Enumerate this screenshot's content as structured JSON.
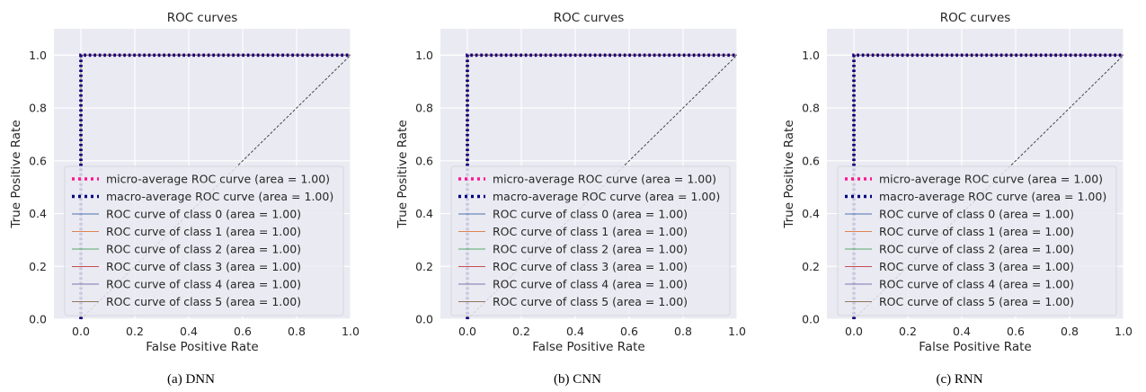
{
  "chart_data": [
    {
      "type": "line",
      "title": "ROC curves",
      "caption": "(a)  DNN",
      "xlabel": "False Positive Rate",
      "ylabel": "True Positive Rate",
      "xlim": [
        -0.1,
        1.0
      ],
      "ylim": [
        0.0,
        1.1
      ],
      "xticks": [
        "0.0",
        "0.2",
        "0.4",
        "0.6",
        "0.8",
        "1.0"
      ],
      "yticks": [
        "0.0",
        "0.2",
        "0.4",
        "0.6",
        "0.8",
        "1.0"
      ],
      "grid": true,
      "legend_position": "lower-right",
      "series": [
        {
          "name": "micro-average ROC curve (area = 1.00)",
          "color": "#ff1493",
          "style": "dotted",
          "x": [
            0.0,
            0.0,
            1.0
          ],
          "y": [
            0.0,
            1.0,
            1.0
          ]
        },
        {
          "name": "macro-average ROC curve (area = 1.00)",
          "color": "#000080",
          "style": "dotted",
          "x": [
            0.0,
            0.0,
            1.0
          ],
          "y": [
            0.0,
            1.0,
            1.0
          ]
        },
        {
          "name": "ROC curve of class 0 (area = 1.00)",
          "color": "#4c72b0",
          "style": "solid",
          "x": [
            0.0,
            0.0,
            1.0
          ],
          "y": [
            0.0,
            1.0,
            1.0
          ]
        },
        {
          "name": "ROC curve of class 1 (area = 1.00)",
          "color": "#dd8452",
          "style": "solid",
          "x": [
            0.0,
            0.0,
            1.0
          ],
          "y": [
            0.0,
            1.0,
            1.0
          ]
        },
        {
          "name": "ROC curve of class 2 (area = 1.00)",
          "color": "#55a868",
          "style": "solid",
          "x": [
            0.0,
            0.0,
            1.0
          ],
          "y": [
            0.0,
            1.0,
            1.0
          ]
        },
        {
          "name": "ROC curve of class 3 (area = 1.00)",
          "color": "#c44e52",
          "style": "solid",
          "x": [
            0.0,
            0.0,
            1.0
          ],
          "y": [
            0.0,
            1.0,
            1.0
          ]
        },
        {
          "name": "ROC curve of class 4 (area = 1.00)",
          "color": "#8172b3",
          "style": "solid",
          "x": [
            0.0,
            0.0,
            1.0
          ],
          "y": [
            0.0,
            1.0,
            1.0
          ]
        },
        {
          "name": "ROC curve of class 5 (area = 1.00)",
          "color": "#937860",
          "style": "solid",
          "x": [
            0.0,
            0.0,
            1.0
          ],
          "y": [
            0.0,
            1.0,
            1.0
          ]
        }
      ],
      "reference_line": {
        "x": [
          0.0,
          1.0
        ],
        "y": [
          0.0,
          1.0
        ],
        "color": "#333333",
        "style": "dashed"
      }
    },
    {
      "type": "line",
      "title": "ROC curves",
      "caption": "(b)  CNN",
      "xlabel": "False Positive Rate",
      "ylabel": "True Positive Rate",
      "xlim": [
        -0.1,
        1.0
      ],
      "ylim": [
        0.0,
        1.1
      ],
      "xticks": [
        "0.0",
        "0.2",
        "0.4",
        "0.6",
        "0.8",
        "1.0"
      ],
      "yticks": [
        "0.0",
        "0.2",
        "0.4",
        "0.6",
        "0.8",
        "1.0"
      ],
      "grid": true,
      "legend_position": "lower-right",
      "series": [
        {
          "name": "micro-average ROC curve (area = 1.00)",
          "color": "#ff1493",
          "style": "dotted",
          "x": [
            0.0,
            0.0,
            1.0
          ],
          "y": [
            0.0,
            1.0,
            1.0
          ]
        },
        {
          "name": "macro-average ROC curve (area = 1.00)",
          "color": "#000080",
          "style": "dotted",
          "x": [
            0.0,
            0.0,
            1.0
          ],
          "y": [
            0.0,
            1.0,
            1.0
          ]
        },
        {
          "name": "ROC curve of class 0 (area = 1.00)",
          "color": "#4c72b0",
          "style": "solid",
          "x": [
            0.0,
            0.0,
            1.0
          ],
          "y": [
            0.0,
            1.0,
            1.0
          ]
        },
        {
          "name": "ROC curve of class 1 (area = 1.00)",
          "color": "#dd8452",
          "style": "solid",
          "x": [
            0.0,
            0.0,
            1.0
          ],
          "y": [
            0.0,
            1.0,
            1.0
          ]
        },
        {
          "name": "ROC curve of class 2 (area = 1.00)",
          "color": "#55a868",
          "style": "solid",
          "x": [
            0.0,
            0.0,
            1.0
          ],
          "y": [
            0.0,
            1.0,
            1.0
          ]
        },
        {
          "name": "ROC curve of class 3 (area = 1.00)",
          "color": "#c44e52",
          "style": "solid",
          "x": [
            0.0,
            0.0,
            1.0
          ],
          "y": [
            0.0,
            1.0,
            1.0
          ]
        },
        {
          "name": "ROC curve of class 4 (area = 1.00)",
          "color": "#8172b3",
          "style": "solid",
          "x": [
            0.0,
            0.0,
            1.0
          ],
          "y": [
            0.0,
            1.0,
            1.0
          ]
        },
        {
          "name": "ROC curve of class 5 (area = 1.00)",
          "color": "#937860",
          "style": "solid",
          "x": [
            0.0,
            0.0,
            1.0
          ],
          "y": [
            0.0,
            1.0,
            1.0
          ]
        }
      ],
      "reference_line": {
        "x": [
          0.0,
          1.0
        ],
        "y": [
          0.0,
          1.0
        ],
        "color": "#333333",
        "style": "dashed"
      }
    },
    {
      "type": "line",
      "title": "ROC curves",
      "caption": "(c)  RNN",
      "xlabel": "False Positive Rate",
      "ylabel": "True Positive Rate",
      "xlim": [
        -0.1,
        1.0
      ],
      "ylim": [
        0.0,
        1.1
      ],
      "xticks": [
        "0.0",
        "0.2",
        "0.4",
        "0.6",
        "0.8",
        "1.0"
      ],
      "yticks": [
        "0.0",
        "0.2",
        "0.4",
        "0.6",
        "0.8",
        "1.0"
      ],
      "grid": true,
      "legend_position": "lower-right",
      "series": [
        {
          "name": "micro-average ROC curve (area = 1.00)",
          "color": "#ff1493",
          "style": "dotted",
          "x": [
            0.0,
            0.0,
            1.0
          ],
          "y": [
            0.0,
            1.0,
            1.0
          ]
        },
        {
          "name": "macro-average ROC curve (area = 1.00)",
          "color": "#000080",
          "style": "dotted",
          "x": [
            0.0,
            0.0,
            1.0
          ],
          "y": [
            0.0,
            1.0,
            1.0
          ]
        },
        {
          "name": "ROC curve of class 0 (area = 1.00)",
          "color": "#4c72b0",
          "style": "solid",
          "x": [
            0.0,
            0.0,
            1.0
          ],
          "y": [
            0.0,
            1.0,
            1.0
          ]
        },
        {
          "name": "ROC curve of class 1 (area = 1.00)",
          "color": "#dd8452",
          "style": "solid",
          "x": [
            0.0,
            0.0,
            1.0
          ],
          "y": [
            0.0,
            1.0,
            1.0
          ]
        },
        {
          "name": "ROC curve of class 2 (area = 1.00)",
          "color": "#55a868",
          "style": "solid",
          "x": [
            0.0,
            0.0,
            1.0
          ],
          "y": [
            0.0,
            1.0,
            1.0
          ]
        },
        {
          "name": "ROC curve of class 3 (area = 1.00)",
          "color": "#c44e52",
          "style": "solid",
          "x": [
            0.0,
            0.0,
            1.0
          ],
          "y": [
            0.0,
            1.0,
            1.0
          ]
        },
        {
          "name": "ROC curve of class 4 (area = 1.00)",
          "color": "#8172b3",
          "style": "solid",
          "x": [
            0.0,
            0.0,
            1.0
          ],
          "y": [
            0.0,
            1.0,
            1.0
          ]
        },
        {
          "name": "ROC curve of class 5 (area = 1.00)",
          "color": "#937860",
          "style": "solid",
          "x": [
            0.0,
            0.0,
            1.0
          ],
          "y": [
            0.0,
            1.0,
            1.0
          ]
        }
      ],
      "reference_line": {
        "x": [
          0.0,
          1.0
        ],
        "y": [
          0.0,
          1.0
        ],
        "color": "#333333",
        "style": "dashed"
      }
    }
  ]
}
